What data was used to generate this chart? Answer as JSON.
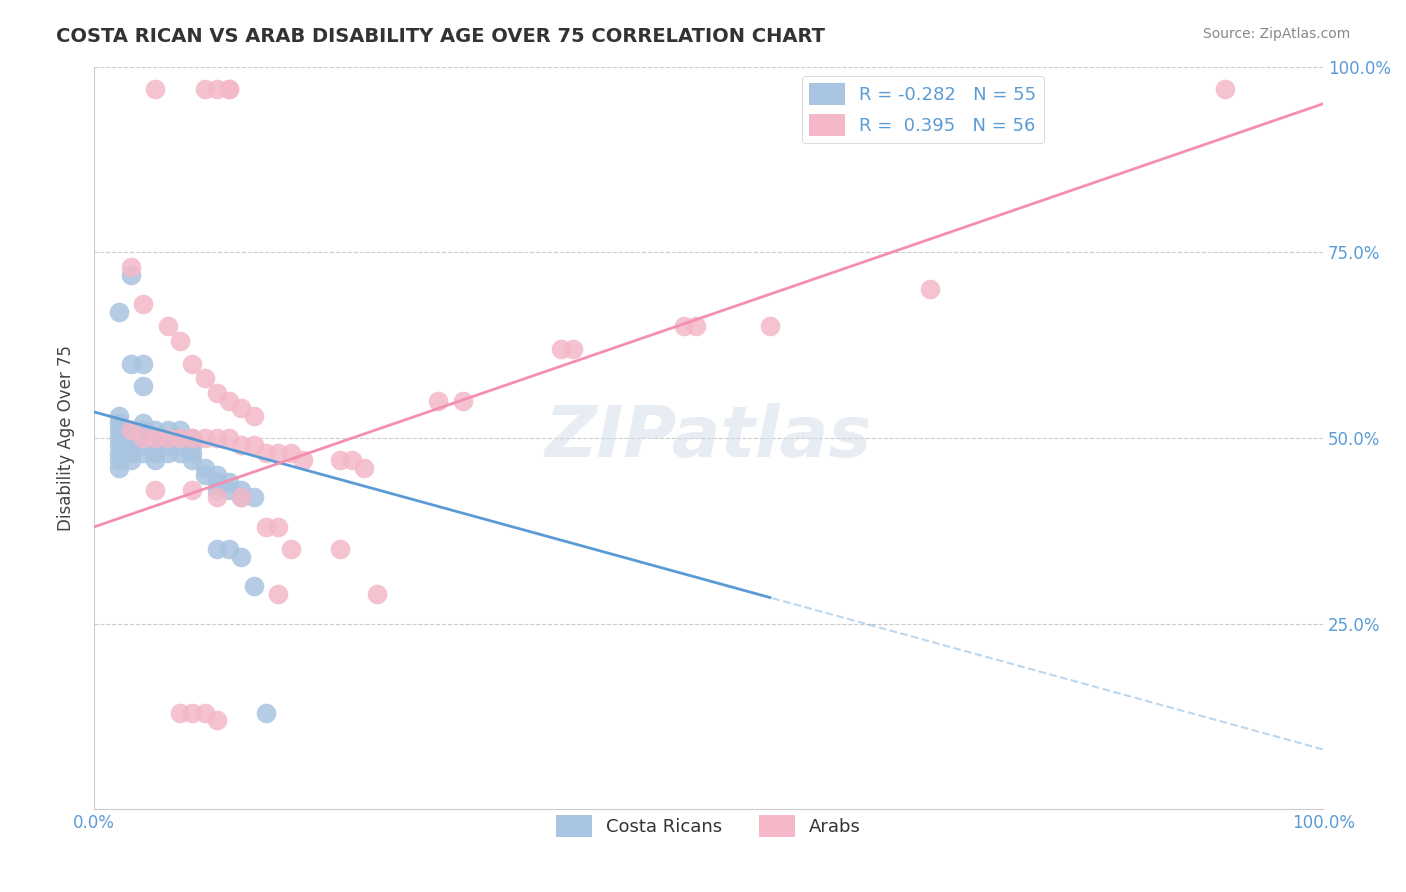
{
  "title": "COSTA RICAN VS ARAB DISABILITY AGE OVER 75 CORRELATION CHART",
  "source": "Source: ZipAtlas.com",
  "xlabel": "",
  "ylabel": "Disability Age Over 75",
  "xlim": [
    0,
    1
  ],
  "ylim": [
    0,
    1
  ],
  "xtick_labels": [
    "0.0%",
    "100.0%"
  ],
  "ytick_labels": [
    "25.0%",
    "50.0%",
    "75.0%",
    "100.0%"
  ],
  "blue_color": "#a8c4e0",
  "pink_color": "#f4b8c8",
  "blue_line_color": "#5b9bd5",
  "pink_line_color": "#f48fb1",
  "blue_dash_color": "#b0c8e0",
  "legend_r_blue": "R = -0.282",
  "legend_n_blue": "N = 55",
  "legend_r_pink": "R =  0.395",
  "legend_n_pink": "N = 56",
  "title_fontsize": 14,
  "watermark": "ZIPatlas",
  "blue_scatter": [
    [
      0.02,
      0.51
    ],
    [
      0.02,
      0.5
    ],
    [
      0.02,
      0.49
    ],
    [
      0.02,
      0.48
    ],
    [
      0.02,
      0.47
    ],
    [
      0.02,
      0.46
    ],
    [
      0.02,
      0.52
    ],
    [
      0.02,
      0.53
    ],
    [
      0.03,
      0.51
    ],
    [
      0.03,
      0.5
    ],
    [
      0.03,
      0.49
    ],
    [
      0.03,
      0.48
    ],
    [
      0.03,
      0.47
    ],
    [
      0.04,
      0.52
    ],
    [
      0.04,
      0.51
    ],
    [
      0.04,
      0.5
    ],
    [
      0.04,
      0.49
    ],
    [
      0.04,
      0.48
    ],
    [
      0.05,
      0.51
    ],
    [
      0.05,
      0.5
    ],
    [
      0.05,
      0.49
    ],
    [
      0.05,
      0.48
    ],
    [
      0.05,
      0.47
    ],
    [
      0.06,
      0.51
    ],
    [
      0.06,
      0.5
    ],
    [
      0.06,
      0.49
    ],
    [
      0.06,
      0.48
    ],
    [
      0.07,
      0.51
    ],
    [
      0.07,
      0.5
    ],
    [
      0.07,
      0.49
    ],
    [
      0.07,
      0.48
    ],
    [
      0.08,
      0.5
    ],
    [
      0.08,
      0.49
    ],
    [
      0.08,
      0.48
    ],
    [
      0.08,
      0.47
    ],
    [
      0.09,
      0.46
    ],
    [
      0.09,
      0.45
    ],
    [
      0.1,
      0.45
    ],
    [
      0.1,
      0.44
    ],
    [
      0.1,
      0.43
    ],
    [
      0.11,
      0.44
    ],
    [
      0.11,
      0.43
    ],
    [
      0.12,
      0.43
    ],
    [
      0.12,
      0.42
    ],
    [
      0.13,
      0.42
    ],
    [
      0.03,
      0.72
    ],
    [
      0.02,
      0.67
    ],
    [
      0.03,
      0.6
    ],
    [
      0.04,
      0.6
    ],
    [
      0.04,
      0.57
    ],
    [
      0.1,
      0.35
    ],
    [
      0.11,
      0.35
    ],
    [
      0.12,
      0.34
    ],
    [
      0.13,
      0.3
    ],
    [
      0.14,
      0.13
    ]
  ],
  "pink_scatter": [
    [
      0.05,
      0.97
    ],
    [
      0.09,
      0.97
    ],
    [
      0.1,
      0.97
    ],
    [
      0.11,
      0.97
    ],
    [
      0.11,
      0.97
    ],
    [
      0.03,
      0.73
    ],
    [
      0.04,
      0.68
    ],
    [
      0.06,
      0.65
    ],
    [
      0.07,
      0.63
    ],
    [
      0.08,
      0.6
    ],
    [
      0.09,
      0.58
    ],
    [
      0.1,
      0.56
    ],
    [
      0.11,
      0.55
    ],
    [
      0.12,
      0.54
    ],
    [
      0.13,
      0.53
    ],
    [
      0.03,
      0.51
    ],
    [
      0.04,
      0.5
    ],
    [
      0.05,
      0.5
    ],
    [
      0.06,
      0.5
    ],
    [
      0.07,
      0.5
    ],
    [
      0.08,
      0.5
    ],
    [
      0.09,
      0.5
    ],
    [
      0.1,
      0.5
    ],
    [
      0.11,
      0.5
    ],
    [
      0.12,
      0.49
    ],
    [
      0.13,
      0.49
    ],
    [
      0.14,
      0.48
    ],
    [
      0.15,
      0.48
    ],
    [
      0.16,
      0.48
    ],
    [
      0.17,
      0.47
    ],
    [
      0.2,
      0.47
    ],
    [
      0.21,
      0.47
    ],
    [
      0.22,
      0.46
    ],
    [
      0.28,
      0.55
    ],
    [
      0.3,
      0.55
    ],
    [
      0.38,
      0.62
    ],
    [
      0.39,
      0.62
    ],
    [
      0.48,
      0.65
    ],
    [
      0.49,
      0.65
    ],
    [
      0.55,
      0.65
    ],
    [
      0.68,
      0.7
    ],
    [
      0.92,
      0.97
    ],
    [
      0.05,
      0.43
    ],
    [
      0.08,
      0.43
    ],
    [
      0.1,
      0.42
    ],
    [
      0.12,
      0.42
    ],
    [
      0.14,
      0.38
    ],
    [
      0.15,
      0.38
    ],
    [
      0.16,
      0.35
    ],
    [
      0.2,
      0.35
    ],
    [
      0.07,
      0.13
    ],
    [
      0.08,
      0.13
    ],
    [
      0.09,
      0.13
    ],
    [
      0.1,
      0.12
    ],
    [
      0.23,
      0.29
    ],
    [
      0.15,
      0.29
    ]
  ]
}
